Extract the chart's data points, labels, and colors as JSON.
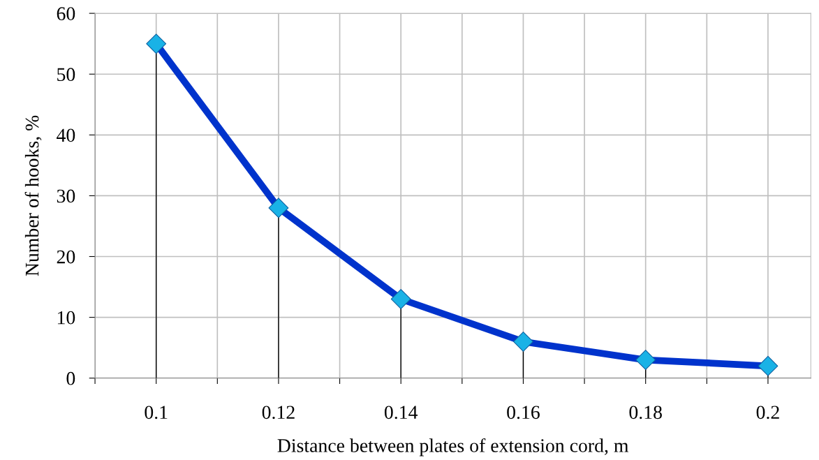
{
  "chart_data": {
    "type": "line",
    "xlabel": "Distance between plates of extension cord, m",
    "ylabel": "Number of hooks, %",
    "x": [
      0.1,
      0.12,
      0.14,
      0.16,
      0.18,
      0.2
    ],
    "series": [
      {
        "color": "#0033cc",
        "colors": [
          "#19b2e6",
          "#19b2e6",
          "#19b2e6",
          "#19b2e6",
          "#19b2e6",
          "#19b2e6"
        ],
        "values": [
          55,
          28,
          13,
          6,
          3,
          2
        ],
        "errors": [
          [
            0,
            55
          ],
          [
            0,
            28
          ],
          [
            0,
            13
          ],
          [
            0,
            6
          ],
          [
            0,
            3
          ],
          [
            0,
            2
          ]
        ]
      }
    ],
    "marker": "diamond",
    "grid": true,
    "xlim": [
      0.09,
      0.207
    ],
    "xticks": [
      {
        "value": 0.09,
        "label": null
      },
      0.1,
      {
        "value": 0.11,
        "label": null
      },
      0.12,
      {
        "value": 0.13,
        "label": null
      },
      0.14,
      {
        "value": 0.15,
        "label": null
      },
      0.16,
      {
        "value": 0.17,
        "label": null
      },
      0.18,
      {
        "value": 0.19,
        "label": null
      },
      0.2
    ],
    "ylim": [
      0,
      60
    ],
    "yticks": [
      0,
      10,
      20,
      30,
      40,
      50,
      60
    ]
  }
}
